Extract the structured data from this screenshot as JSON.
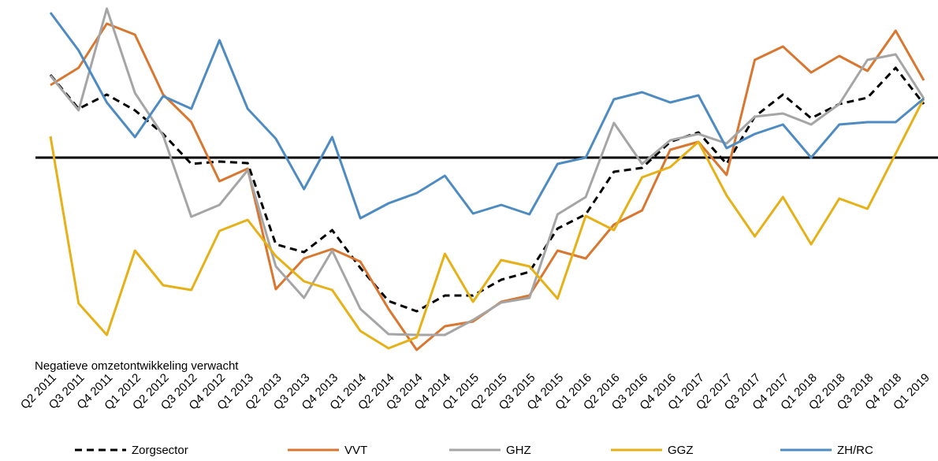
{
  "chart_data": {
    "type": "line",
    "annotation": "Negatieve omzetontwikkeling verwacht",
    "categories": [
      "Q2 2011",
      "Q3 2011",
      "Q4 2011",
      "Q1 2012",
      "Q2 2012",
      "Q3 2012",
      "Q4 2012",
      "Q1 2013",
      "Q2 2013",
      "Q3 2013",
      "Q4 2013",
      "Q1 2014",
      "Q2 2014",
      "Q3 2014",
      "Q4 2014",
      "Q1 2015",
      "Q2 2015",
      "Q3 2015",
      "Q4 2015",
      "Q1 2016",
      "Q2 2016",
      "Q3 2016",
      "Q4 2016",
      "Q1 2017",
      "Q2 2017",
      "Q3 2017",
      "Q4 2017",
      "Q1 2018",
      "Q2 2018",
      "Q3 2018",
      "Q4 2018",
      "Q1 2019"
    ],
    "ylim": [
      -12.5,
      10
    ],
    "reference_line": 0,
    "series": [
      {
        "name": "Zorgsector",
        "color": "#000000",
        "dashed": true,
        "values": [
          5.25,
          3.1,
          4,
          3,
          1.5,
          -0.4,
          -0.25,
          -0.35,
          -5.5,
          -6,
          -4.6,
          -7,
          -9.1,
          -9.75,
          -8.75,
          -8.75,
          -7.75,
          -7.25,
          -4.5,
          -3.6,
          -0.9,
          -0.65,
          1,
          1.6,
          -0.4,
          2.6,
          4,
          2.5,
          3.4,
          3.8,
          5.7,
          3.4
        ]
      },
      {
        "name": "VVT",
        "color": "#D9762F",
        "values": [
          4.6,
          5.7,
          8.5,
          7.8,
          4,
          2.25,
          -1.5,
          -0.7,
          -8.35,
          -6.4,
          -5.8,
          -6.6,
          -9.6,
          -12.2,
          -10.7,
          -10.4,
          -9.15,
          -8.75,
          -5.9,
          -6.4,
          -4.25,
          -3.35,
          0.5,
          1,
          -1.1,
          6.2,
          7.05,
          5.4,
          6.45,
          5.5,
          8.05,
          4.9
        ]
      },
      {
        "name": "GHZ",
        "color": "#A5A5A5",
        "values": [
          5.2,
          3,
          9.45,
          4.1,
          1.4,
          -3.75,
          -3,
          -0.8,
          -6.9,
          -8.9,
          -5.9,
          -9.6,
          -11.2,
          -11.25,
          -11.25,
          -10.3,
          -9.2,
          -8.9,
          -3.6,
          -2.5,
          2.2,
          -0.4,
          1.1,
          1.5,
          0.9,
          2.6,
          2.8,
          2.1,
          3.4,
          6.2,
          6.55,
          3.75
        ]
      },
      {
        "name": "GGZ",
        "color": "#E6B117",
        "values": [
          1.35,
          -9.25,
          -11.25,
          -5.9,
          -8.1,
          -8.4,
          -4.65,
          -3.95,
          -6.25,
          -7.85,
          -8.4,
          -11,
          -12.1,
          -11.4,
          -6.1,
          -9.15,
          -6.5,
          -6.9,
          -8.95,
          -3.7,
          -4.6,
          -1.25,
          -0.6,
          1,
          -2.4,
          -5,
          -2.5,
          -5.5,
          -2.6,
          -3.25,
          0.25,
          3.75
        ]
      },
      {
        "name": "ZH/RC",
        "color": "#4E8BC2",
        "values": [
          9.2,
          6.8,
          3.5,
          1.3,
          3.9,
          3.1,
          7.45,
          3.1,
          1.2,
          -2,
          1.3,
          -3.85,
          -2.9,
          -2.25,
          -1.15,
          -3.55,
          -3,
          -3.6,
          -0.4,
          0,
          3.7,
          4.15,
          3.5,
          3.95,
          0.6,
          1.5,
          2.1,
          0,
          2.1,
          2.25,
          2.25,
          3.75
        ]
      }
    ]
  }
}
